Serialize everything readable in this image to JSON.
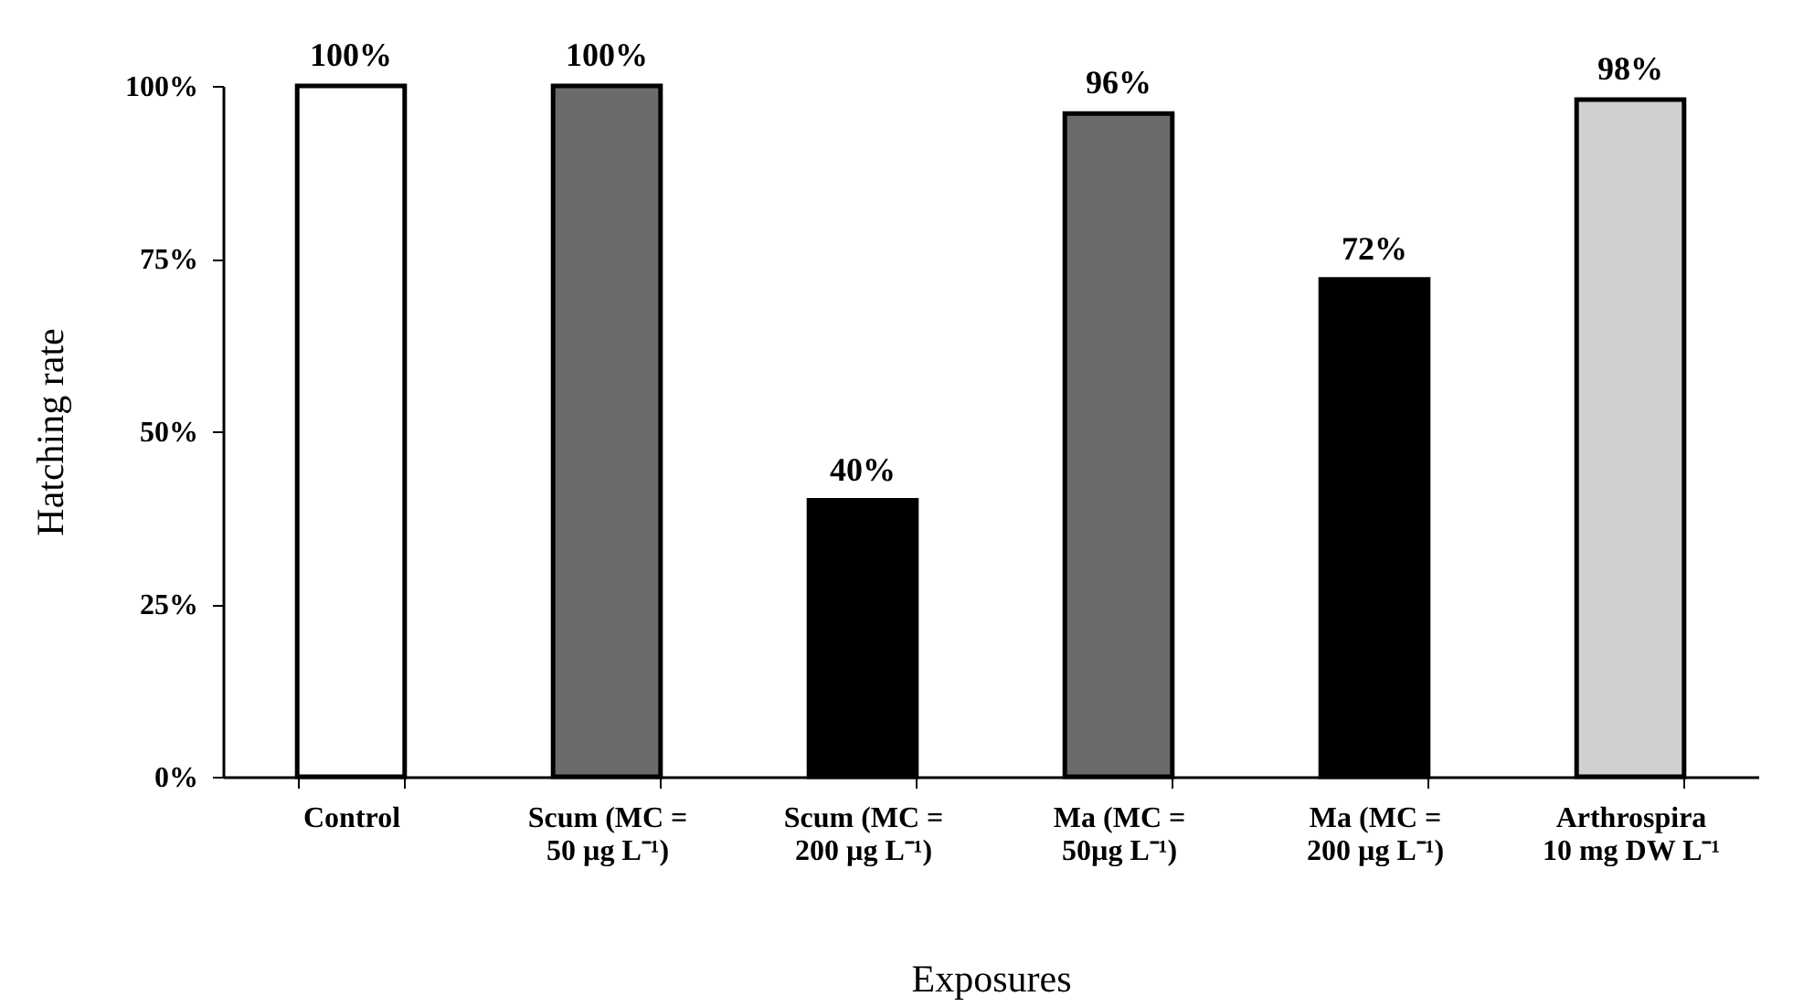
{
  "chart_data": {
    "type": "bar",
    "xlabel": "Exposures",
    "ylabel": "Hatching rate",
    "categories": [
      "Control",
      "Scum (MC = 50 µg L⁻¹)",
      "Scum (MC = 200 µg L⁻¹)",
      "Ma (MC = 50µg L⁻¹)",
      "Ma (MC = 200 µg L⁻¹)",
      "Arthrospira 10 mg DW L⁻¹"
    ],
    "values": [
      100,
      100,
      40,
      96,
      72,
      98
    ],
    "colors": [
      "#ffffff",
      "#6b6b6b",
      "#000000",
      "#6b6b6b",
      "#000000",
      "#d0d0d0"
    ],
    "value_labels": [
      "100%",
      "100%",
      "40%",
      "96%",
      "72%",
      "98%"
    ],
    "ylim": [
      0,
      100
    ],
    "yticks": [
      {
        "value": 0,
        "label": "0%"
      },
      {
        "value": 25,
        "label": "25%"
      },
      {
        "value": 50,
        "label": "50%"
      },
      {
        "value": 75,
        "label": "75%"
      },
      {
        "value": 100,
        "label": "100%"
      }
    ],
    "grid": false
  }
}
